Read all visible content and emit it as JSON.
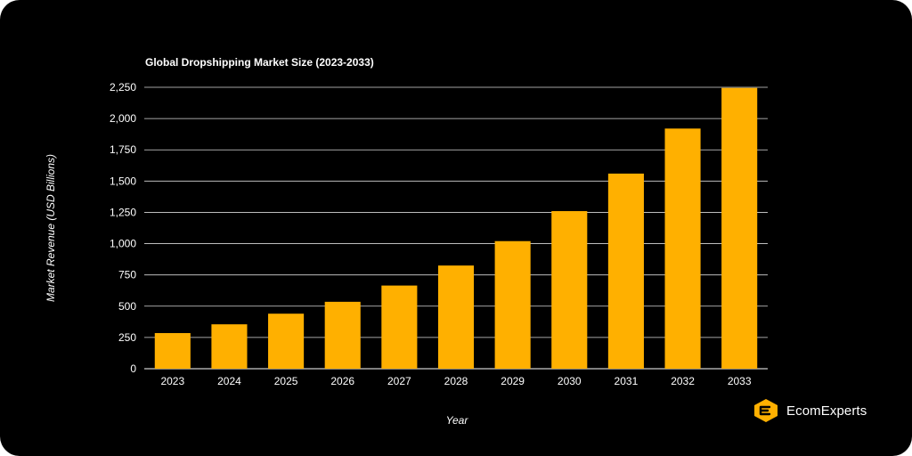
{
  "colors": {
    "background": "#000000",
    "bar": "#ffb000",
    "text": "#ffffff",
    "grid": "#ffffff",
    "brand_accent": "#ffb000"
  },
  "brand": {
    "icon": "ecomexperts-logo-icon",
    "name": "EcomExperts"
  },
  "chart_data": {
    "type": "bar",
    "title": "Global Dropshipping Market Size (2023-2033)",
    "xlabel": "Year",
    "ylabel": "Market Revenue (USD Billions)",
    "categories": [
      "2023",
      "2024",
      "2025",
      "2026",
      "2027",
      "2028",
      "2029",
      "2030",
      "2031",
      "2032",
      "2033"
    ],
    "values": [
      285,
      355,
      440,
      535,
      665,
      825,
      1020,
      1260,
      1560,
      1920,
      2245
    ],
    "ylim": [
      0,
      2250
    ],
    "yticks": [
      0,
      250,
      500,
      750,
      1000,
      1250,
      1500,
      1750,
      2000,
      2250
    ],
    "ytick_labels": [
      "0",
      "250",
      "500",
      "750",
      "1,000",
      "1,250",
      "1,500",
      "1,750",
      "2,000",
      "2,250"
    ],
    "grid": true,
    "legend": "none"
  }
}
